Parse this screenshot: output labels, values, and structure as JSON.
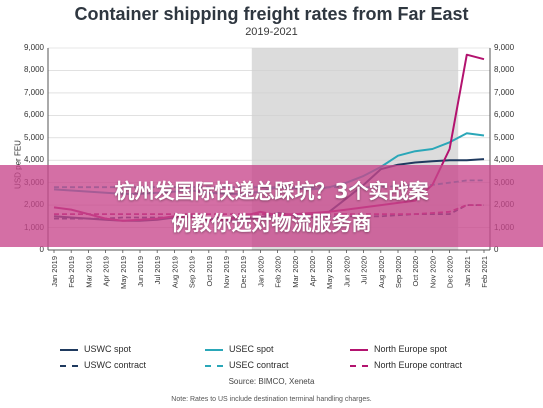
{
  "chart_data": {
    "type": "line",
    "title": "Container shipping freight rates from Far East",
    "subtitle": "2019-2021",
    "ylabel": "USD per FEU",
    "ylim": [
      0,
      9000
    ],
    "yticks": [
      "0",
      "1,000",
      "2,000",
      "3,000",
      "4,000",
      "5,000",
      "6,000",
      "7,000",
      "8,000",
      "9,000"
    ],
    "categories": [
      "Jan 2019",
      "Feb 2019",
      "Mar 2019",
      "Apr 2019",
      "May 2019",
      "Jun 2019",
      "Jul 2019",
      "Aug 2019",
      "Sep 2019",
      "Oct 2019",
      "Nov 2019",
      "Dec 2019",
      "Jan 2020",
      "Feb 2020",
      "Mar 2020",
      "Apr 2020",
      "May 2020",
      "Jun 2020",
      "Jul 2020",
      "Aug 2020",
      "Sep 2020",
      "Oct 2020",
      "Nov 2020",
      "Dec 2020",
      "Jan 2021",
      "Feb 2021"
    ],
    "shaded_range": [
      "Jan 2020",
      "Dec 2020"
    ],
    "series": [
      {
        "name": "USWC spot",
        "color": "#1f3a5f",
        "dash": "solid",
        "values": [
          1500,
          1450,
          1400,
          1350,
          1300,
          1300,
          1350,
          1450,
          1500,
          1400,
          1300,
          1350,
          1450,
          1650,
          1550,
          1600,
          1700,
          2300,
          2900,
          3600,
          3800,
          3900,
          3950,
          4000,
          4000,
          4050
        ]
      },
      {
        "name": "USWC contract",
        "color": "#1f3a5f",
        "dash": "dashed",
        "values": [
          1400,
          1400,
          1400,
          1400,
          1450,
          1450,
          1450,
          1450,
          1450,
          1450,
          1450,
          1450,
          1450,
          1450,
          1450,
          1450,
          1500,
          1500,
          1500,
          1500,
          1550,
          1600,
          1600,
          1600,
          2000,
          2000
        ]
      },
      {
        "name": "USEC spot",
        "color": "#2aa7b8",
        "dash": "solid",
        "values": [
          2700,
          2650,
          2600,
          2550,
          2500,
          2500,
          2550,
          2600,
          2650,
          2550,
          2500,
          2500,
          2600,
          2800,
          2750,
          2700,
          2800,
          3000,
          3300,
          3700,
          4200,
          4400,
          4500,
          4800,
          5200,
          5100
        ]
      },
      {
        "name": "USEC contract",
        "color": "#2aa7b8",
        "dash": "dashed",
        "values": [
          2800,
          2800,
          2800,
          2800,
          2800,
          2800,
          2800,
          2800,
          2800,
          2800,
          2800,
          2800,
          2800,
          2800,
          2800,
          2800,
          2800,
          2800,
          2800,
          2800,
          2850,
          2900,
          2900,
          3000,
          3100,
          3100
        ]
      },
      {
        "name": "North Europe spot",
        "color": "#b3136f",
        "dash": "solid",
        "values": [
          1900,
          1800,
          1600,
          1400,
          1300,
          1350,
          1400,
          1500,
          1450,
          1300,
          1350,
          1500,
          1700,
          1550,
          1600,
          1650,
          1700,
          1800,
          1900,
          2000,
          2100,
          2200,
          2900,
          4500,
          8700,
          8500
        ]
      },
      {
        "name": "North Europe contract",
        "color": "#b3136f",
        "dash": "dashed",
        "values": [
          1600,
          1600,
          1600,
          1600,
          1600,
          1600,
          1600,
          1600,
          1600,
          1600,
          1600,
          1600,
          1600,
          1600,
          1600,
          1600,
          1600,
          1600,
          1600,
          1600,
          1600,
          1600,
          1650,
          1700,
          2000,
          2000
        ]
      }
    ]
  },
  "overlay": {
    "line1": "杭州发国际快递总踩坑？3个实战案",
    "line2": "例教你选对物流服务商"
  },
  "source": "Source: BIMCO, Xeneta",
  "note": "Note: Rates to US include destination terminal handling charges."
}
